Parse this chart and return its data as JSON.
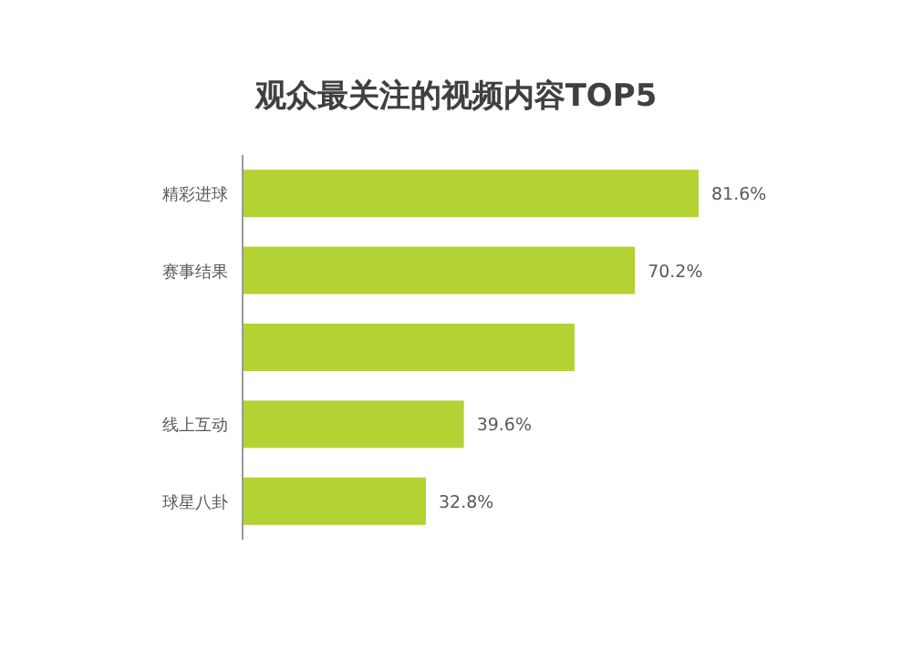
{
  "chart_data": {
    "type": "bar",
    "orientation": "horizontal",
    "title": "观众最关注的视频内容TOP5",
    "categories": [
      "精彩进球",
      "赛事结果",
      null,
      "线上互动",
      "球星八卦"
    ],
    "values": [
      81.6,
      70.2,
      59.4,
      39.6,
      32.8
    ],
    "value_labels": [
      "81.6%",
      "70.2%",
      null,
      "39.6%",
      "32.8%"
    ],
    "color": "#b3d234"
  }
}
